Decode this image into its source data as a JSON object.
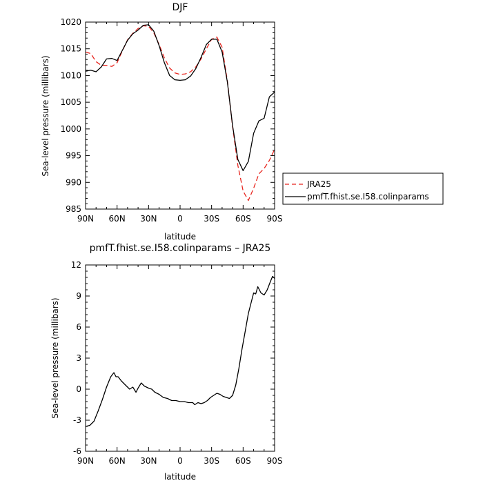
{
  "chart_data": [
    {
      "type": "line",
      "title": "DJF",
      "xlabel": "latitude",
      "ylabel": "Sea-level pressure (millibars)",
      "x_ticks": [
        "90N",
        "60N",
        "30N",
        "0",
        "30S",
        "60S",
        "90S"
      ],
      "x_tick_values": [
        -90,
        -60,
        -30,
        0,
        30,
        60,
        90
      ],
      "ylim": [
        985,
        1020
      ],
      "y_ticks": [
        985,
        990,
        995,
        1000,
        1005,
        1010,
        1015,
        1020
      ],
      "legend_position": "right",
      "series": [
        {
          "name": "JRA25",
          "color": "#e8251e",
          "style": "dashed",
          "x": [
            -90,
            -85,
            -80,
            -75,
            -70,
            -65,
            -60,
            -55,
            -50,
            -45,
            -40,
            -35,
            -30,
            -25,
            -20,
            -15,
            -10,
            -5,
            0,
            5,
            10,
            15,
            20,
            25,
            30,
            35,
            40,
            45,
            50,
            55,
            60,
            65,
            70,
            75,
            80,
            85,
            90
          ],
          "values": [
            1014.4,
            1014.1,
            1012.6,
            1011.9,
            1011.9,
            1011.7,
            1012.4,
            1014.6,
            1016.7,
            1017.9,
            1018.8,
            1019.3,
            1019.2,
            1018.0,
            1015.8,
            1013.3,
            1011.4,
            1010.5,
            1010.2,
            1010.3,
            1010.7,
            1011.6,
            1013.1,
            1015.0,
            1016.8,
            1017.2,
            1015.3,
            1009.0,
            1000.4,
            993.2,
            988.4,
            986.6,
            988.9,
            991.6,
            992.6,
            994.1,
            996.2
          ]
        },
        {
          "name": "pmfT.fhist.se.I58.colinparams",
          "color": "#000000",
          "style": "solid",
          "x": [
            -90,
            -85,
            -80,
            -75,
            -70,
            -65,
            -60,
            -55,
            -50,
            -45,
            -40,
            -35,
            -30,
            -25,
            -20,
            -15,
            -10,
            -5,
            0,
            5,
            10,
            15,
            20,
            25,
            30,
            35,
            40,
            45,
            50,
            55,
            60,
            65,
            70,
            75,
            80,
            85,
            90
          ],
          "values": [
            1010.8,
            1011.0,
            1010.7,
            1011.6,
            1013.1,
            1013.2,
            1012.8,
            1014.7,
            1016.6,
            1017.8,
            1018.5,
            1019.4,
            1019.5,
            1018.3,
            1015.6,
            1012.4,
            1010.0,
            1009.2,
            1009.1,
            1009.2,
            1009.9,
            1011.3,
            1013.4,
            1015.8,
            1016.8,
            1016.8,
            1014.4,
            1008.8,
            1000.6,
            994.3,
            992.2,
            993.9,
            999.2,
            1001.5,
            1002.0,
            1006.0,
            1006.9
          ]
        }
      ]
    },
    {
      "type": "line",
      "title": "pmfT.fhist.se.I58.colinparams – JRA25",
      "xlabel": "latitude",
      "ylabel": "Sea-level pressure (millibars)",
      "x_ticks": [
        "90N",
        "60N",
        "30N",
        "0",
        "30S",
        "60S",
        "90S"
      ],
      "x_tick_values": [
        -90,
        -60,
        -30,
        0,
        30,
        60,
        90
      ],
      "ylim": [
        -6,
        12
      ],
      "y_ticks": [
        -6,
        -3,
        0,
        3,
        6,
        9,
        12
      ],
      "series": [
        {
          "color": "#000000",
          "style": "solid",
          "x": [
            -90,
            -86,
            -82,
            -78,
            -74,
            -70,
            -66,
            -63,
            -61,
            -59,
            -56,
            -52,
            -48,
            -45,
            -42,
            -40,
            -37,
            -34,
            -30,
            -27,
            -24,
            -20,
            -16,
            -12,
            -8,
            -4,
            0,
            4,
            8,
            12,
            14,
            17,
            20,
            23,
            26,
            29,
            32,
            35,
            38,
            41,
            44,
            47,
            50,
            53,
            56,
            59,
            62,
            65,
            68,
            70,
            72,
            74,
            77,
            80,
            83,
            86,
            88,
            90
          ],
          "values": [
            -3.6,
            -3.5,
            -3.1,
            -2.1,
            -1.0,
            0.2,
            1.2,
            1.6,
            1.2,
            1.2,
            0.8,
            0.4,
            0.0,
            0.2,
            -0.3,
            0.1,
            0.6,
            0.3,
            0.1,
            0.0,
            -0.3,
            -0.5,
            -0.8,
            -0.9,
            -1.1,
            -1.1,
            -1.2,
            -1.2,
            -1.3,
            -1.3,
            -1.5,
            -1.3,
            -1.4,
            -1.3,
            -1.1,
            -0.8,
            -0.6,
            -0.4,
            -0.5,
            -0.7,
            -0.8,
            -0.9,
            -0.6,
            0.4,
            2.0,
            3.9,
            5.6,
            7.3,
            8.5,
            9.3,
            9.2,
            9.9,
            9.3,
            9.1,
            9.6,
            10.4,
            10.9,
            10.7
          ]
        }
      ]
    }
  ]
}
